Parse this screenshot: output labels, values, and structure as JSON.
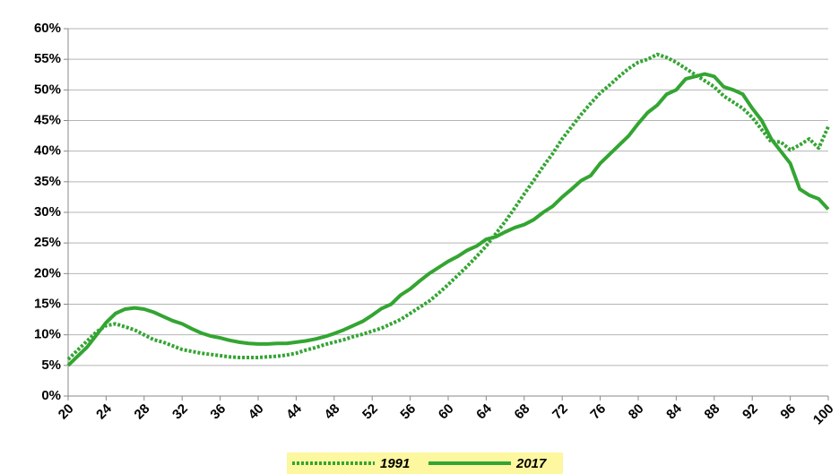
{
  "chart_data": {
    "type": "line",
    "x": [
      20,
      21,
      22,
      23,
      24,
      25,
      26,
      27,
      28,
      29,
      30,
      31,
      32,
      33,
      34,
      35,
      36,
      37,
      38,
      39,
      40,
      41,
      42,
      43,
      44,
      45,
      46,
      47,
      48,
      49,
      50,
      51,
      52,
      53,
      54,
      55,
      56,
      57,
      58,
      59,
      60,
      61,
      62,
      63,
      64,
      65,
      66,
      67,
      68,
      69,
      70,
      71,
      72,
      73,
      74,
      75,
      76,
      77,
      78,
      79,
      80,
      81,
      82,
      83,
      84,
      85,
      86,
      87,
      88,
      89,
      90,
      91,
      92,
      93,
      94,
      95,
      96,
      97,
      98,
      99,
      100
    ],
    "series": [
      {
        "name": "1991",
        "color": "#33a532",
        "dash": "dotted",
        "values": [
          6,
          7.5,
          9,
          10.5,
          11.5,
          11.8,
          11.3,
          10.8,
          10,
          9.2,
          8.8,
          8.2,
          7.6,
          7.3,
          7,
          6.8,
          6.6,
          6.4,
          6.3,
          6.3,
          6.3,
          6.4,
          6.5,
          6.7,
          7,
          7.5,
          7.9,
          8.4,
          8.8,
          9.2,
          9.7,
          10.1,
          10.6,
          11.1,
          11.8,
          12.5,
          13.5,
          14.5,
          15.5,
          16.8,
          18.2,
          19.7,
          21.2,
          22.8,
          24.5,
          26.5,
          28.5,
          30.7,
          33,
          35.2,
          37.5,
          39.6,
          42,
          44,
          46,
          47.8,
          49.5,
          50.8,
          52.2,
          53.5,
          54.5,
          55,
          55.8,
          55.3,
          54.5,
          53.5,
          52.5,
          51.5,
          50.5,
          49,
          48,
          47,
          45.5,
          43.5,
          41.5,
          41.5,
          40.2,
          41,
          42,
          40.5,
          44
        ]
      },
      {
        "name": "2017",
        "color": "#33a532",
        "dash": "solid",
        "values": [
          5,
          6.5,
          8,
          10,
          12,
          13.5,
          14.2,
          14.4,
          14.2,
          13.7,
          13,
          12.3,
          11.8,
          11,
          10.3,
          9.8,
          9.5,
          9.1,
          8.8,
          8.6,
          8.5,
          8.5,
          8.6,
          8.6,
          8.8,
          9,
          9.3,
          9.7,
          10.2,
          10.8,
          11.5,
          12.2,
          13.2,
          14.3,
          15,
          16.5,
          17.5,
          18.8,
          20,
          21,
          22,
          22.8,
          23.8,
          24.5,
          25.6,
          26,
          26.8,
          27.5,
          28,
          28.8,
          30,
          31,
          32.5,
          33.8,
          35.2,
          36,
          38,
          39.5,
          41,
          42.5,
          44.5,
          46.3,
          47.5,
          49.3,
          50,
          51.8,
          52.2,
          52.6,
          52.2,
          50.5,
          50,
          49.3,
          47,
          45,
          42,
          40,
          38,
          33.8,
          32.8,
          32.2,
          30.5
        ]
      }
    ],
    "xlim": [
      20,
      100
    ],
    "xticks": [
      20,
      24,
      28,
      32,
      36,
      40,
      44,
      48,
      52,
      56,
      60,
      64,
      68,
      72,
      76,
      80,
      84,
      88,
      92,
      96,
      100
    ],
    "ylim": [
      0,
      60
    ],
    "yticks": [
      {
        "value": 0,
        "label": "0%"
      },
      {
        "value": 5,
        "label": "5%"
      },
      {
        "value": 10,
        "label": "10%"
      },
      {
        "value": 15,
        "label": "15%"
      },
      {
        "value": 20,
        "label": "20%"
      },
      {
        "value": 25,
        "label": "25%"
      },
      {
        "value": 30,
        "label": "30%"
      },
      {
        "value": 35,
        "label": "35%"
      },
      {
        "value": 40,
        "label": "40%"
      },
      {
        "value": 45,
        "label": "45%"
      },
      {
        "value": 50,
        "label": "50%"
      },
      {
        "value": 55,
        "label": "55%"
      },
      {
        "value": 60,
        "label": "60%"
      }
    ],
    "grid": true,
    "legend": "bottom"
  }
}
